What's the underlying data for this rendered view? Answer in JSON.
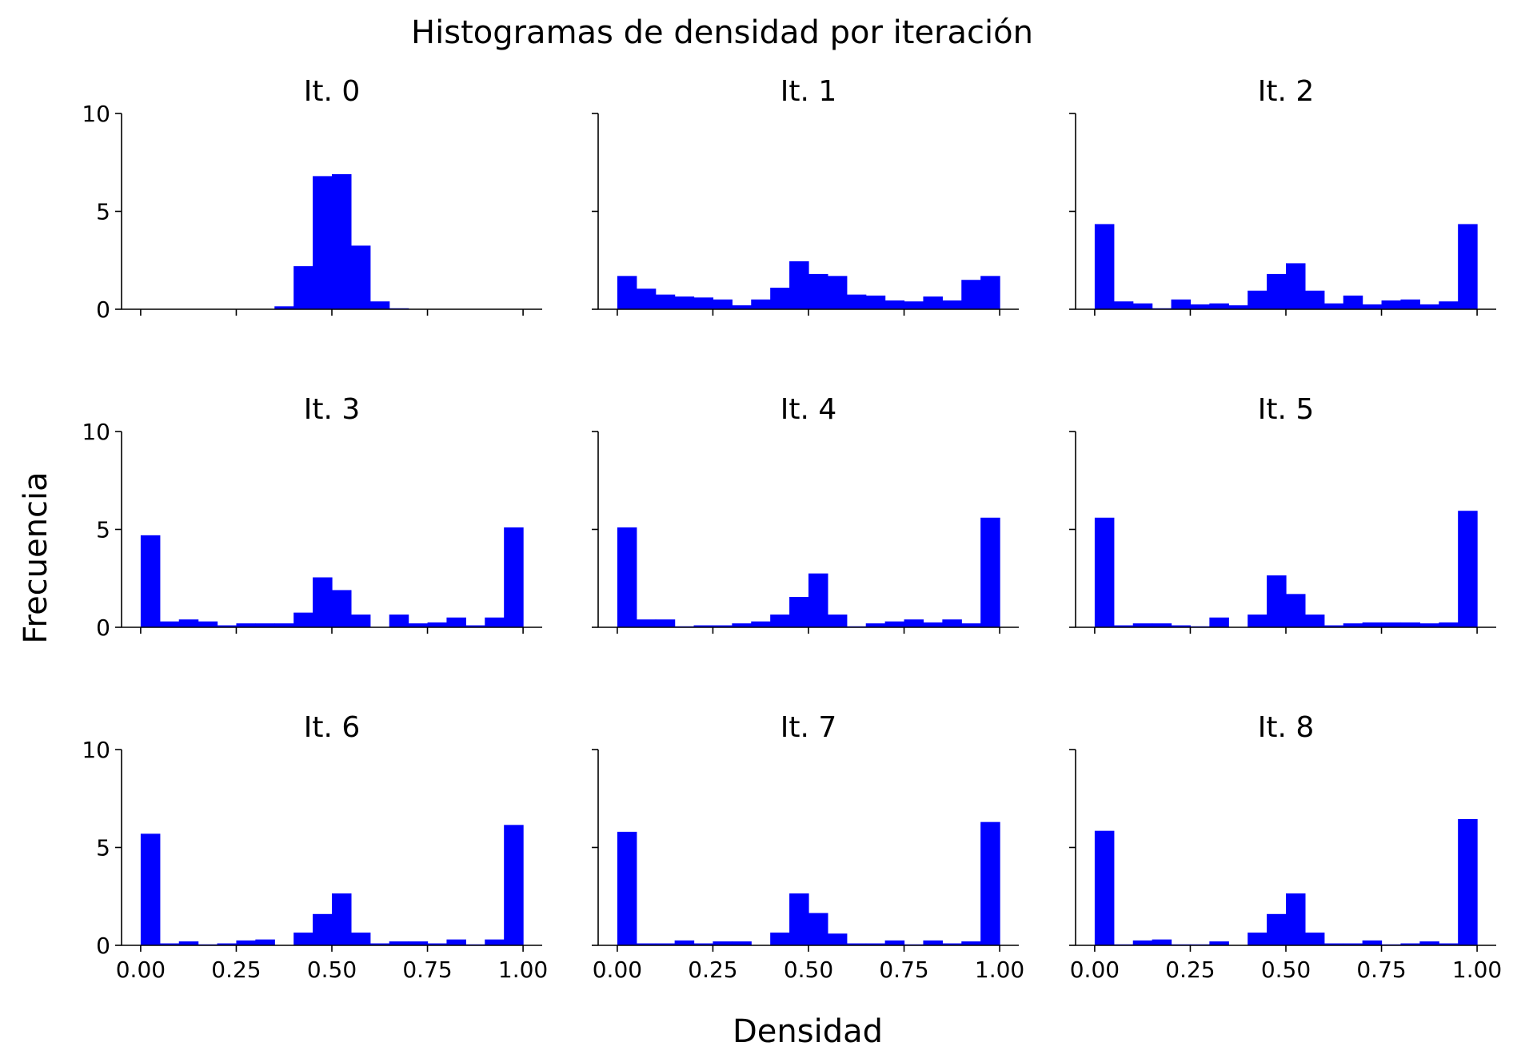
{
  "chart_data": {
    "type": "bar",
    "title": "Histogramas de densidad por iteración",
    "xlabel": "Densidad",
    "ylabel": "Frecuencia",
    "xlim": [
      -0.05,
      1.05
    ],
    "ylim": [
      0,
      10
    ],
    "bins": 20,
    "bin_width": 0.05,
    "bin_start": 0.0,
    "xticks": [
      0.0,
      0.25,
      0.5,
      0.75,
      1.0
    ],
    "xtick_labels": [
      "0.00",
      "0.25",
      "0.50",
      "0.75",
      "1.00"
    ],
    "yticks": [
      0,
      5,
      10
    ],
    "ytick_labels": [
      "0",
      "5",
      "10"
    ],
    "bar_color": "#0000ff",
    "grid": false,
    "layout": {
      "rows": 3,
      "cols": 3,
      "sharex": true,
      "sharey": true
    },
    "panels": [
      {
        "title": "It. 0",
        "values": [
          0,
          0,
          0,
          0,
          0,
          0,
          0,
          0.15,
          2.2,
          6.8,
          6.9,
          3.25,
          0.4,
          0.05,
          0,
          0,
          0,
          0,
          0,
          0
        ]
      },
      {
        "title": "It. 1",
        "values": [
          1.7,
          1.05,
          0.75,
          0.65,
          0.6,
          0.5,
          0.2,
          0.5,
          1.1,
          2.45,
          1.8,
          1.7,
          0.75,
          0.7,
          0.45,
          0.4,
          0.65,
          0.45,
          1.5,
          1.7
        ]
      },
      {
        "title": "It. 2",
        "values": [
          4.35,
          0.4,
          0.3,
          0.05,
          0.5,
          0.25,
          0.3,
          0.2,
          0.95,
          1.8,
          2.35,
          0.95,
          0.3,
          0.7,
          0.25,
          0.45,
          0.5,
          0.25,
          0.4,
          4.35
        ]
      },
      {
        "title": "It. 3",
        "values": [
          4.7,
          0.3,
          0.4,
          0.3,
          0.1,
          0.2,
          0.2,
          0.2,
          0.75,
          2.55,
          1.9,
          0.65,
          0,
          0.65,
          0.2,
          0.25,
          0.5,
          0.1,
          0.5,
          5.1
        ]
      },
      {
        "title": "It. 4",
        "values": [
          5.1,
          0.4,
          0.4,
          0.05,
          0.1,
          0.1,
          0.2,
          0.3,
          0.65,
          1.55,
          2.75,
          0.65,
          0.05,
          0.2,
          0.3,
          0.4,
          0.25,
          0.4,
          0.2,
          5.6
        ]
      },
      {
        "title": "It. 5",
        "values": [
          5.6,
          0.1,
          0.2,
          0.2,
          0.1,
          0.05,
          0.5,
          0,
          0.65,
          2.65,
          1.7,
          0.65,
          0.1,
          0.2,
          0.25,
          0.25,
          0.25,
          0.2,
          0.25,
          5.95
        ]
      },
      {
        "title": "It. 6",
        "values": [
          5.7,
          0.1,
          0.2,
          0.05,
          0.1,
          0.25,
          0.3,
          0,
          0.65,
          1.6,
          2.65,
          0.65,
          0.1,
          0.2,
          0.2,
          0.1,
          0.3,
          0.05,
          0.3,
          6.15
        ]
      },
      {
        "title": "It. 7",
        "values": [
          5.8,
          0.1,
          0.1,
          0.25,
          0.1,
          0.2,
          0.2,
          0,
          0.65,
          2.65,
          1.65,
          0.6,
          0.1,
          0.1,
          0.25,
          0.05,
          0.25,
          0.1,
          0.2,
          6.3
        ]
      },
      {
        "title": "It. 8",
        "values": [
          5.85,
          0.05,
          0.25,
          0.3,
          0.05,
          0.05,
          0.2,
          0,
          0.65,
          1.6,
          2.65,
          0.65,
          0.1,
          0.1,
          0.25,
          0.05,
          0.1,
          0.2,
          0.1,
          6.45
        ]
      }
    ]
  }
}
